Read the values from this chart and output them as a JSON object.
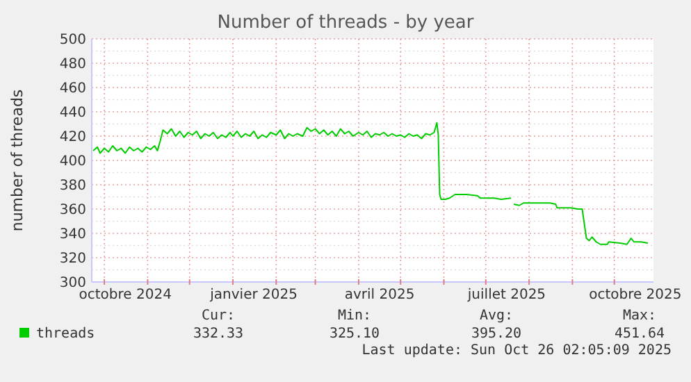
{
  "chart_data": {
    "type": "line",
    "title": "Number of threads - by year",
    "ylabel": "number of threads",
    "xlim": [
      "2024-09-22",
      "2025-10-29"
    ],
    "ylim": [
      300,
      500
    ],
    "xticks": [
      {
        "value": "2024-10-01",
        "label": null
      },
      {
        "value": "2024-10-16",
        "label": "octobre 2024"
      },
      {
        "value": "2024-11-01",
        "label": null
      },
      {
        "value": "2024-12-01",
        "label": null
      },
      {
        "value": "2025-01-01",
        "label": null
      },
      {
        "value": "2025-01-16",
        "label": "janvier 2025"
      },
      {
        "value": "2025-02-01",
        "label": null
      },
      {
        "value": "2025-03-01",
        "label": null
      },
      {
        "value": "2025-04-01",
        "label": null
      },
      {
        "value": "2025-04-16",
        "label": "avril 2025"
      },
      {
        "value": "2025-05-01",
        "label": null
      },
      {
        "value": "2025-06-01",
        "label": null
      },
      {
        "value": "2025-07-01",
        "label": null
      },
      {
        "value": "2025-07-16",
        "label": "juillet 2025"
      },
      {
        "value": "2025-08-01",
        "label": null
      },
      {
        "value": "2025-09-01",
        "label": null
      },
      {
        "value": "2025-10-01",
        "label": null
      },
      {
        "value": "2025-10-16",
        "label": "octobre 2025"
      }
    ],
    "yticks": [
      300,
      {
        "value": 310,
        "label": null
      },
      320,
      {
        "value": 330,
        "label": null
      },
      340,
      {
        "value": 350,
        "label": null
      },
      360,
      {
        "value": 370,
        "label": null
      },
      380,
      {
        "value": 390,
        "label": null
      },
      400,
      {
        "value": 410,
        "label": null
      },
      420,
      {
        "value": 430,
        "label": null
      },
      440,
      {
        "value": 450,
        "label": null
      },
      460,
      {
        "value": 470,
        "label": null
      },
      480,
      {
        "value": 490,
        "label": null
      },
      500
    ],
    "grid": true,
    "legend": "bottom",
    "x": [
      "2024-09-23",
      "2024-09-26",
      "2024-09-28",
      "2024-10-01",
      "2024-10-04",
      "2024-10-07",
      "2024-10-10",
      "2024-10-13",
      "2024-10-16",
      "2024-10-19",
      "2024-10-22",
      "2024-10-25",
      "2024-10-28",
      "2024-10-31",
      "2024-11-03",
      "2024-11-06",
      "2024-11-08",
      "2024-11-10",
      "2024-11-12",
      "2024-11-15",
      "2024-11-18",
      "2024-11-21",
      "2024-11-24",
      "2024-11-27",
      "2024-11-30",
      "2024-12-03",
      "2024-12-06",
      "2024-12-09",
      "2024-12-12",
      "2024-12-15",
      "2024-12-18",
      "2024-12-21",
      "2024-12-24",
      "2024-12-27",
      "2024-12-30",
      "2025-01-01",
      "2025-01-04",
      "2025-01-07",
      "2025-01-10",
      "2025-01-13",
      "2025-01-16",
      "2025-01-19",
      "2025-01-22",
      "2025-01-25",
      "2025-01-28",
      "2025-02-01",
      "2025-02-04",
      "2025-02-07",
      "2025-02-10",
      "2025-02-13",
      "2025-02-16",
      "2025-02-20",
      "2025-02-23",
      "2025-02-26",
      "2025-03-01",
      "2025-03-04",
      "2025-03-07",
      "2025-03-10",
      "2025-03-13",
      "2025-03-16",
      "2025-03-19",
      "2025-03-22",
      "2025-03-25",
      "2025-03-28",
      "2025-04-01",
      "2025-04-04",
      "2025-04-07",
      "2025-04-10",
      "2025-04-13",
      "2025-04-16",
      "2025-04-19",
      "2025-04-22",
      "2025-04-25",
      "2025-04-28",
      "2025-05-01",
      "2025-05-04",
      "2025-05-07",
      "2025-05-10",
      "2025-05-13",
      "2025-05-16",
      "2025-05-19",
      "2025-05-22",
      "2025-05-25",
      "2025-05-27",
      "2025-05-28",
      "2025-05-29",
      "2025-05-30",
      "2025-06-02",
      "2025-06-05",
      "2025-06-09",
      "2025-06-17",
      "2025-06-25",
      "2025-06-27",
      "2025-07-07",
      "2025-07-12",
      "2025-07-19",
      "2025-07-20",
      "2025-07-21",
      "2025-07-25",
      "2025-07-28",
      "2025-08-06",
      "2025-08-16",
      "2025-08-20",
      "2025-08-21",
      "2025-08-31",
      "2025-09-05",
      "2025-09-08",
      "2025-09-11",
      "2025-09-13",
      "2025-09-15",
      "2025-09-18",
      "2025-09-21",
      "2025-09-26",
      "2025-09-27",
      "2025-10-05",
      "2025-10-10",
      "2025-10-13",
      "2025-10-15",
      "2025-10-20",
      "2025-10-25"
    ],
    "series": [
      {
        "name": "threads",
        "color": "#00cc00",
        "values": [
          408,
          411,
          406,
          410,
          407,
          412,
          408,
          410,
          406,
          411,
          408,
          410,
          407,
          411,
          409,
          412,
          408,
          416,
          425,
          422,
          426,
          420,
          424,
          419,
          423,
          421,
          424,
          418,
          422,
          420,
          423,
          418,
          421,
          419,
          423,
          420,
          424,
          419,
          422,
          420,
          424,
          418,
          421,
          419,
          423,
          421,
          425,
          418,
          422,
          420,
          422,
          420,
          427,
          424,
          426,
          422,
          425,
          421,
          424,
          420,
          426,
          422,
          424,
          420,
          423,
          421,
          424,
          419,
          422,
          421,
          423,
          420,
          422,
          420,
          421,
          419,
          422,
          420,
          421,
          418,
          422,
          421,
          423,
          431,
          421,
          372,
          368,
          368,
          369,
          372,
          372,
          371,
          369,
          369,
          368,
          369,
          null,
          364,
          363,
          365,
          365,
          365,
          364,
          361,
          361,
          360,
          360,
          336,
          334,
          337,
          333,
          331,
          331,
          333,
          332,
          331,
          336,
          333,
          333,
          332
        ]
      }
    ],
    "annotations": [
      "Cur:",
      "Min:",
      "Avg:",
      "Max:",
      "332.33",
      "325.10",
      "395.20",
      "451.64",
      "Last update: Sun Oct 26 02:05:09 2025"
    ]
  }
}
